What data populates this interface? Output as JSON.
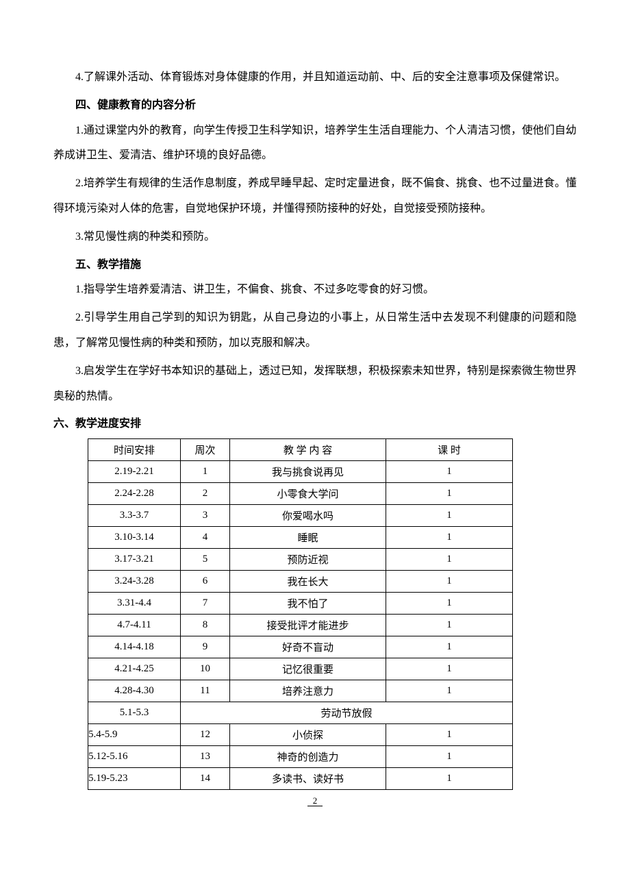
{
  "paragraphs": {
    "p1": "4.了解课外活动、体育锻炼对身体健康的作用，并且知道运动前、中、后的安全注意事项及保健常识。",
    "h4": "四、健康教育的内容分析",
    "p2": "1.通过课堂内外的教育，向学生传授卫生科学知识，培养学生生活自理能力、个人清洁习惯，使他们自幼养成讲卫生、爱清洁、维护环境的良好品德。",
    "p3": "2.培养学生有规律的生活作息制度，养成早睡早起、定时定量进食，既不偏食、挑食、也不过量进食。懂得环境污染对人体的危害，自觉地保护环境，并懂得预防接种的好处，自觉接受预防接种。",
    "p4": "3.常见慢性病的种类和预防。",
    "h5": "五、教学措施",
    "p5": "1.指导学生培养爱清洁、讲卫生，不偏食、挑食、不过多吃零食的好习惯。",
    "p6": "2.引导学生用自己学到的知识为钥匙，从自己身边的小事上，从日常生活中去发现不利健康的问题和隐患，了解常见慢性病的种类和预防，加以克服和解决。",
    "p7": "3.启发学生在学好书本知识的基础上，透过已知，发挥联想，积极探索未知世界，特别是探索微生物世界奥秘的热情。",
    "h6": "六、教学进度安排"
  },
  "table": {
    "headers": {
      "time": "时间安排",
      "week": "周次",
      "content": "教 学 内 容",
      "hours": "课 时"
    },
    "rows": [
      {
        "time": "2.19-2.21",
        "week": "1",
        "content": "我与挑食说再见",
        "hours": "1",
        "shifted": false
      },
      {
        "time": "2.24-2.28",
        "week": "2",
        "content": "小零食大学问",
        "hours": "1",
        "shifted": false
      },
      {
        "time": "3.3-3.7",
        "week": "3",
        "content": "你爱喝水吗",
        "hours": "1",
        "shifted": false
      },
      {
        "time": "3.10-3.14",
        "week": "4",
        "content": "睡眠",
        "hours": "1",
        "shifted": false
      },
      {
        "time": "3.17-3.21",
        "week": "5",
        "content": "预防近视",
        "hours": "1",
        "shifted": false
      },
      {
        "time": "3.24-3.28",
        "week": "6",
        "content": "我在长大",
        "hours": "1",
        "shifted": false
      },
      {
        "time": "3.31-4.4",
        "week": "7",
        "content": "我不怕了",
        "hours": "1",
        "shifted": false
      },
      {
        "time": "4.7-4.11",
        "week": "8",
        "content": "接受批评才能进步",
        "hours": "1",
        "shifted": false
      },
      {
        "time": "4.14-4.18",
        "week": "9",
        "content": "好奇不盲动",
        "hours": "1",
        "shifted": false
      },
      {
        "time": "4.21-4.25",
        "week": "10",
        "content": "记忆很重要",
        "hours": "1",
        "shifted": false
      },
      {
        "time": "4.28-4.30",
        "week": "11",
        "content": "培养注意力",
        "hours": "1",
        "shifted": false
      }
    ],
    "holiday": {
      "time": "5.1-5.3",
      "content": "劳动节放假"
    },
    "rows2": [
      {
        "time": "5.4-5.9",
        "week": "12",
        "content": "小侦探",
        "hours": "1",
        "shifted": true
      },
      {
        "time": "5.12-5.16",
        "week": "13",
        "content": "神奇的创造力",
        "hours": "1",
        "shifted": true
      },
      {
        "time": "5.19-5.23",
        "week": "14",
        "content": "多读书、读好书",
        "hours": "1",
        "shifted": true
      }
    ]
  },
  "page_number": "2",
  "styling": {
    "body_width": 920,
    "body_padding_top": 95,
    "body_padding_side": 78,
    "font_size_body": 16,
    "line_height": 2.3,
    "font_family": "SimSun",
    "text_color": "#000000",
    "background_color": "#ffffff",
    "table_border_color": "#000000",
    "table_font_size": 15,
    "col_widths": {
      "time": 135,
      "week": 72,
      "content": 228,
      "hours": 185
    }
  }
}
